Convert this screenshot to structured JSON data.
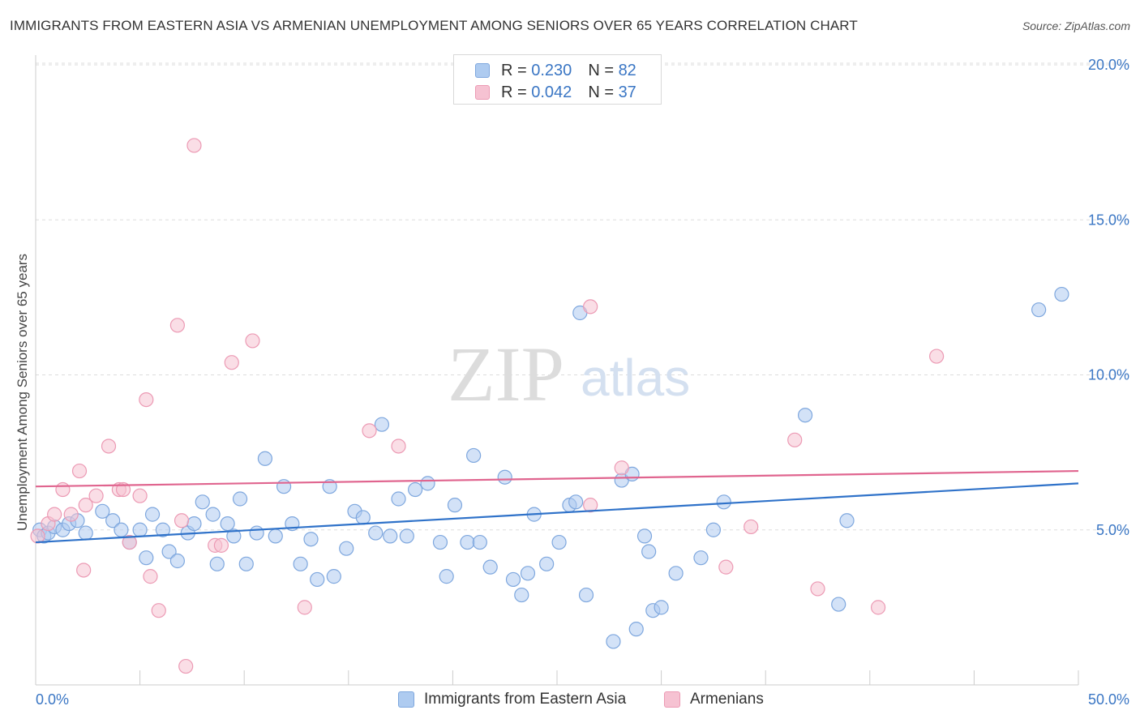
{
  "title": "IMMIGRANTS FROM EASTERN ASIA VS ARMENIAN UNEMPLOYMENT AMONG SENIORS OVER 65 YEARS CORRELATION CHART",
  "source": "Source: ZipAtlas.com",
  "watermark": {
    "zip": "ZIP",
    "atlas": "atlas"
  },
  "legend_top": [
    {
      "r_label": "R =",
      "r_value": "0.230",
      "n_label": "N =",
      "n_value": "82"
    },
    {
      "r_label": "R =",
      "r_value": "0.042",
      "n_label": "N =",
      "n_value": "37"
    }
  ],
  "colors": {
    "blue_fill": "#aecbf0",
    "blue_stroke": "#7ea7de",
    "blue_line": "#2f72c9",
    "pink_fill": "#f6c2d2",
    "pink_stroke": "#ec9ab4",
    "pink_line": "#e0658f",
    "grid": "#dddddd",
    "tick_text": "#3a76c4"
  },
  "chart_data": {
    "type": "scatter",
    "title": "IMMIGRANTS FROM EASTERN ASIA VS ARMENIAN UNEMPLOYMENT AMONG SENIORS OVER 65 YEARS CORRELATION CHART",
    "xlabel": "",
    "ylabel": "Unemployment Among Seniors over 65 years",
    "xlim": [
      0,
      50
    ],
    "ylim": [
      0,
      20.5
    ],
    "x_tick_labels": [
      "0.0%",
      "50.0%"
    ],
    "y_ticks": [
      5,
      10,
      15,
      20
    ],
    "y_tick_labels": [
      "5.0%",
      "10.0%",
      "15.0%",
      "20.0%"
    ],
    "grid": true,
    "legend_position": "top-center",
    "series": [
      {
        "name": "Immigrants from Eastern Asia",
        "color": "#7ea7de",
        "trend": [
          [
            0,
            4.6
          ],
          [
            50,
            6.5
          ]
        ],
        "points": [
          [
            0.2,
            5.0
          ],
          [
            0.4,
            4.8
          ],
          [
            0.6,
            4.9
          ],
          [
            0.9,
            5.1
          ],
          [
            1.3,
            5.0
          ],
          [
            1.6,
            5.2
          ],
          [
            2.0,
            5.3
          ],
          [
            2.4,
            4.9
          ],
          [
            3.2,
            5.6
          ],
          [
            3.7,
            5.3
          ],
          [
            4.1,
            5.0
          ],
          [
            4.5,
            4.6
          ],
          [
            5.0,
            5.0
          ],
          [
            5.3,
            4.1
          ],
          [
            5.6,
            5.5
          ],
          [
            6.1,
            5.0
          ],
          [
            6.4,
            4.3
          ],
          [
            6.8,
            4.0
          ],
          [
            7.3,
            4.9
          ],
          [
            7.6,
            5.2
          ],
          [
            8.0,
            5.9
          ],
          [
            8.5,
            5.5
          ],
          [
            8.7,
            3.9
          ],
          [
            9.2,
            5.2
          ],
          [
            9.5,
            4.8
          ],
          [
            9.8,
            6.0
          ],
          [
            10.1,
            3.9
          ],
          [
            10.6,
            4.9
          ],
          [
            11.0,
            7.3
          ],
          [
            11.5,
            4.8
          ],
          [
            11.9,
            6.4
          ],
          [
            12.3,
            5.2
          ],
          [
            12.7,
            3.9
          ],
          [
            13.2,
            4.7
          ],
          [
            13.5,
            3.4
          ],
          [
            14.1,
            6.4
          ],
          [
            14.3,
            3.5
          ],
          [
            14.9,
            4.4
          ],
          [
            15.3,
            5.6
          ],
          [
            15.7,
            5.4
          ],
          [
            16.3,
            4.9
          ],
          [
            16.6,
            8.4
          ],
          [
            17.0,
            4.8
          ],
          [
            17.4,
            6.0
          ],
          [
            17.8,
            4.8
          ],
          [
            18.2,
            6.3
          ],
          [
            18.8,
            6.5
          ],
          [
            19.4,
            4.6
          ],
          [
            19.7,
            3.5
          ],
          [
            20.1,
            5.8
          ],
          [
            20.7,
            4.6
          ],
          [
            21.0,
            7.4
          ],
          [
            21.3,
            4.6
          ],
          [
            21.8,
            3.8
          ],
          [
            22.5,
            6.7
          ],
          [
            22.9,
            3.4
          ],
          [
            23.3,
            2.9
          ],
          [
            23.6,
            3.6
          ],
          [
            23.9,
            5.5
          ],
          [
            24.5,
            3.9
          ],
          [
            25.1,
            4.6
          ],
          [
            25.6,
            5.8
          ],
          [
            25.9,
            5.9
          ],
          [
            26.1,
            12.0
          ],
          [
            26.4,
            2.9
          ],
          [
            28.1,
            6.6
          ],
          [
            28.6,
            6.8
          ],
          [
            27.7,
            1.4
          ],
          [
            28.8,
            1.8
          ],
          [
            29.2,
            4.8
          ],
          [
            29.4,
            4.3
          ],
          [
            29.6,
            2.4
          ],
          [
            30.0,
            2.5
          ],
          [
            30.7,
            3.6
          ],
          [
            31.9,
            4.1
          ],
          [
            32.5,
            5.0
          ],
          [
            33.0,
            5.9
          ],
          [
            36.9,
            8.7
          ],
          [
            38.5,
            2.6
          ],
          [
            38.9,
            5.3
          ],
          [
            48.1,
            12.1
          ],
          [
            49.2,
            12.6
          ]
        ]
      },
      {
        "name": "Armenians",
        "color": "#ec9ab4",
        "trend": [
          [
            0,
            6.4
          ],
          [
            50,
            6.9
          ]
        ],
        "points": [
          [
            0.1,
            4.8
          ],
          [
            0.6,
            5.2
          ],
          [
            0.9,
            5.5
          ],
          [
            1.3,
            6.3
          ],
          [
            1.7,
            5.5
          ],
          [
            2.1,
            6.9
          ],
          [
            2.3,
            3.7
          ],
          [
            2.4,
            5.8
          ],
          [
            2.9,
            6.1
          ],
          [
            3.5,
            7.7
          ],
          [
            4.0,
            6.3
          ],
          [
            4.2,
            6.3
          ],
          [
            4.5,
            4.6
          ],
          [
            5.0,
            6.1
          ],
          [
            5.3,
            9.2
          ],
          [
            5.5,
            3.5
          ],
          [
            5.9,
            2.4
          ],
          [
            6.8,
            11.6
          ],
          [
            7.0,
            5.3
          ],
          [
            7.2,
            0.6
          ],
          [
            7.6,
            17.4
          ],
          [
            8.6,
            4.5
          ],
          [
            8.9,
            4.5
          ],
          [
            9.4,
            10.4
          ],
          [
            10.4,
            11.1
          ],
          [
            12.9,
            2.5
          ],
          [
            16.0,
            8.2
          ],
          [
            17.4,
            7.7
          ],
          [
            26.6,
            5.8
          ],
          [
            26.6,
            12.2
          ],
          [
            28.1,
            7.0
          ],
          [
            33.1,
            3.8
          ],
          [
            34.3,
            5.1
          ],
          [
            36.4,
            7.9
          ],
          [
            37.5,
            3.1
          ],
          [
            40.4,
            2.5
          ],
          [
            43.2,
            10.6
          ]
        ]
      }
    ]
  },
  "legend_bottom": [
    "Immigrants from Eastern Asia",
    "Armenians"
  ]
}
